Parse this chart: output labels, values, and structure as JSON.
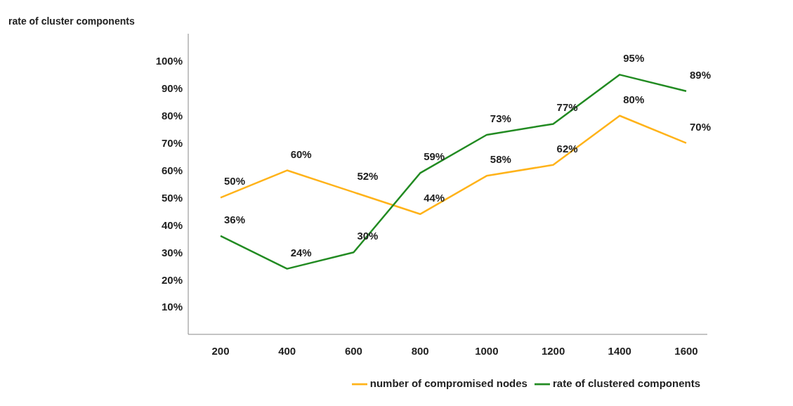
{
  "chart_data": {
    "type": "line",
    "ylabel": "rate of cluster components",
    "categories": [
      "200",
      "400",
      "600",
      "800",
      "1000",
      "1200",
      "1400",
      "1600"
    ],
    "series": [
      {
        "name": "number of compromised nodes",
        "color": "#ffb31a",
        "values": [
          50,
          60,
          52,
          44,
          58,
          62,
          80,
          70
        ],
        "value_labels": [
          "50%",
          "60%",
          "52%",
          "44%",
          "58%",
          "62%",
          "80%",
          "70%"
        ]
      },
      {
        "name": "rate of clustered components",
        "color": "#228b22",
        "values": [
          36,
          24,
          30,
          59,
          73,
          77,
          95,
          89
        ],
        "value_labels": [
          "36%",
          "24%",
          "30%",
          "59%",
          "73%",
          "77%",
          "95%",
          "89%"
        ]
      }
    ],
    "ylim": [
      0,
      110
    ],
    "yticks": [
      {
        "value": 10,
        "label": "10%"
      },
      {
        "value": 20,
        "label": "20%"
      },
      {
        "value": 30,
        "label": "30%"
      },
      {
        "value": 40,
        "label": "40%"
      },
      {
        "value": 50,
        "label": "50%"
      },
      {
        "value": 60,
        "label": "60%"
      },
      {
        "value": 70,
        "label": "70%"
      },
      {
        "value": 80,
        "label": "80%"
      },
      {
        "value": 90,
        "label": "90%"
      },
      {
        "value": 100,
        "label": "100%"
      }
    ],
    "grid": false,
    "legend": "bottom right",
    "marker": "none",
    "line_style": "solid"
  }
}
